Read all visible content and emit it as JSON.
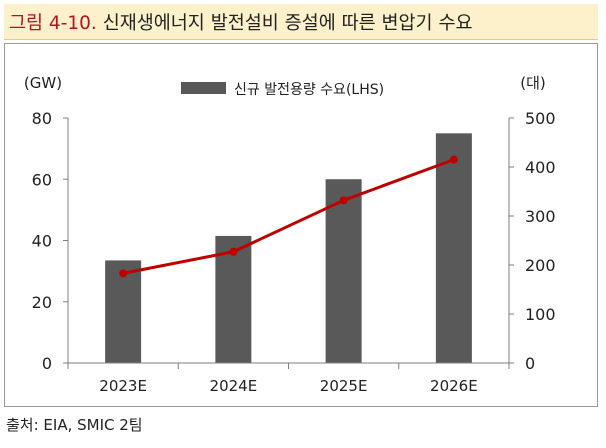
{
  "figure": {
    "number": "그림 4-10.",
    "title": "신재생에너지 발전설비 증설에 따른 변압기 수요"
  },
  "source": "출처: EIA, SMIC 2팀",
  "colors": {
    "bar": "#595959",
    "line": "#c00000",
    "title_accent": "#b5121b",
    "title_bg": "#fdf1cc"
  },
  "chart_data": {
    "type": "bar",
    "categories": [
      "2023E",
      "2024E",
      "2025E",
      "2026E"
    ],
    "series": [
      {
        "name": "신규 발전용량 수요(LHS)",
        "type": "bar",
        "axis": "left",
        "values": [
          33.5,
          41.5,
          60,
          75
        ]
      },
      {
        "type": "line",
        "axis": "right",
        "values": [
          183,
          227,
          332,
          415
        ]
      }
    ],
    "y_left": {
      "unit": "(GW)",
      "ylim": [
        0,
        80
      ],
      "ticks": [
        0,
        20,
        40,
        60,
        80
      ]
    },
    "y_right": {
      "unit": "(대)",
      "ylim": [
        0,
        500
      ],
      "ticks": [
        0,
        100,
        200,
        300,
        400,
        500
      ]
    },
    "legend_position": "top-center",
    "grid": false
  }
}
